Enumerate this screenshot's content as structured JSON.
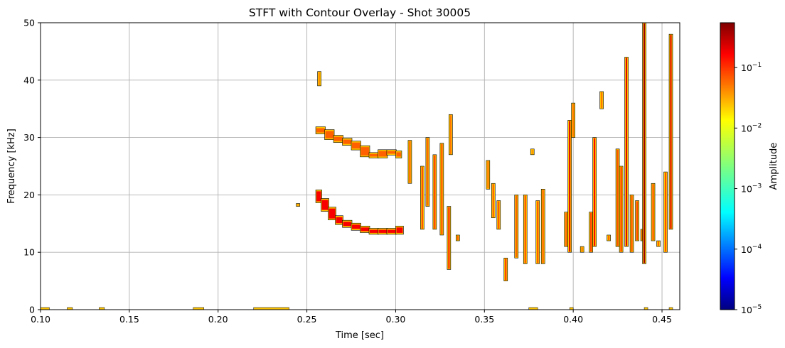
{
  "chart_data": {
    "type": "heatmap",
    "title": "STFT with Contour Overlay - Shot 30005",
    "xlabel": "Time [sec]",
    "ylabel": "Frequency [kHz]",
    "xlim": [
      0.1,
      0.46
    ],
    "ylim": [
      0,
      50
    ],
    "xticks": [
      0.1,
      0.15,
      0.2,
      0.25,
      0.3,
      0.35,
      0.4,
      0.45
    ],
    "xtick_labels": [
      "0.10",
      "0.15",
      "0.20",
      "0.25",
      "0.30",
      "0.35",
      "0.40",
      "0.45"
    ],
    "yticks": [
      0,
      10,
      20,
      30,
      40,
      50
    ],
    "ytick_labels": [
      "0",
      "10",
      "20",
      "30",
      "40",
      "50"
    ],
    "grid": true,
    "colorbar": {
      "label": "Amplitude",
      "scale": "log",
      "range": [
        1e-05,
        0.55
      ],
      "ticks": [
        {
          "value": 1e-05,
          "base": "10",
          "exp": "−5"
        },
        {
          "value": 0.0001,
          "base": "10",
          "exp": "−4"
        },
        {
          "value": 0.001,
          "base": "10",
          "exp": "−3"
        },
        {
          "value": 0.01,
          "base": "10",
          "exp": "−2"
        },
        {
          "value": 0.1,
          "base": "10",
          "exp": "−1"
        }
      ],
      "colormap": "jet",
      "colors": [
        "#00007f",
        "#0000ff",
        "#007fff",
        "#00ffff",
        "#7fff7f",
        "#ffff00",
        "#ff7f00",
        "#ff0000",
        "#7f0000"
      ]
    },
    "contour_color": "#000000",
    "features": [
      {
        "name": "mode-branch-upper",
        "points": [
          [
            0.255,
            31.5
          ],
          [
            0.26,
            31.0
          ],
          [
            0.265,
            30.0
          ],
          [
            0.27,
            29.5
          ],
          [
            0.275,
            29.0
          ],
          [
            0.28,
            28.2
          ],
          [
            0.285,
            27.0
          ],
          [
            0.29,
            26.8
          ],
          [
            0.295,
            27.5
          ],
          [
            0.3,
            27.3
          ],
          [
            0.303,
            26.8
          ]
        ],
        "amp": 0.05
      },
      {
        "name": "mode-branch-lower",
        "points": [
          [
            0.255,
            20.5
          ],
          [
            0.258,
            19.0
          ],
          [
            0.262,
            17.5
          ],
          [
            0.266,
            16.0
          ],
          [
            0.27,
            15.2
          ],
          [
            0.275,
            14.7
          ],
          [
            0.28,
            14.2
          ],
          [
            0.285,
            13.8
          ],
          [
            0.29,
            13.5
          ],
          [
            0.295,
            13.8
          ],
          [
            0.3,
            13.5
          ],
          [
            0.304,
            14.2
          ]
        ],
        "amp": 0.15
      },
      {
        "name": "vertical-bursts",
        "bars": [
          [
            0.257,
            39,
            41.5,
            0.03
          ],
          [
            0.245,
            18,
            18.5,
            0.03
          ],
          [
            0.308,
            22,
            29.5,
            0.05
          ],
          [
            0.315,
            14,
            25,
            0.06
          ],
          [
            0.318,
            18,
            30,
            0.05
          ],
          [
            0.322,
            14,
            27,
            0.08
          ],
          [
            0.326,
            13,
            29,
            0.06
          ],
          [
            0.33,
            7,
            18,
            0.1
          ],
          [
            0.331,
            27,
            34,
            0.04
          ],
          [
            0.335,
            12,
            13,
            0.05
          ],
          [
            0.352,
            21,
            26,
            0.04
          ],
          [
            0.355,
            16,
            22,
            0.05
          ],
          [
            0.358,
            14,
            19,
            0.06
          ],
          [
            0.362,
            5,
            9,
            0.08
          ],
          [
            0.368,
            9,
            20,
            0.05
          ],
          [
            0.373,
            8,
            20,
            0.06
          ],
          [
            0.377,
            27,
            28,
            0.03
          ],
          [
            0.38,
            8,
            19,
            0.06
          ],
          [
            0.383,
            8,
            21,
            0.05
          ],
          [
            0.396,
            11,
            17,
            0.05
          ],
          [
            0.398,
            10,
            33,
            0.2
          ],
          [
            0.4,
            30,
            36,
            0.04
          ],
          [
            0.405,
            10,
            11,
            0.04
          ],
          [
            0.41,
            10,
            17,
            0.08
          ],
          [
            0.412,
            11,
            30,
            0.15
          ],
          [
            0.416,
            35,
            38,
            0.04
          ],
          [
            0.42,
            12,
            13,
            0.05
          ],
          [
            0.425,
            11,
            28,
            0.06
          ],
          [
            0.427,
            10,
            25,
            0.08
          ],
          [
            0.43,
            11,
            44,
            0.2
          ],
          [
            0.433,
            10,
            20,
            0.06
          ],
          [
            0.436,
            12,
            19,
            0.07
          ],
          [
            0.439,
            12,
            14,
            0.08
          ],
          [
            0.44,
            8,
            50,
            0.4
          ],
          [
            0.445,
            12,
            22,
            0.06
          ],
          [
            0.448,
            11,
            12,
            0.05
          ],
          [
            0.452,
            10,
            24,
            0.06
          ],
          [
            0.455,
            14,
            48,
            0.2
          ]
        ]
      },
      {
        "name": "baseline-leakage",
        "segments": [
          [
            0.1,
            0.105
          ],
          [
            0.115,
            0.118
          ],
          [
            0.133,
            0.136
          ],
          [
            0.186,
            0.192
          ],
          [
            0.22,
            0.24
          ],
          [
            0.375,
            0.38
          ],
          [
            0.398,
            0.4
          ],
          [
            0.44,
            0.442
          ],
          [
            0.454,
            0.456
          ]
        ],
        "amp": 0.03
      }
    ]
  }
}
